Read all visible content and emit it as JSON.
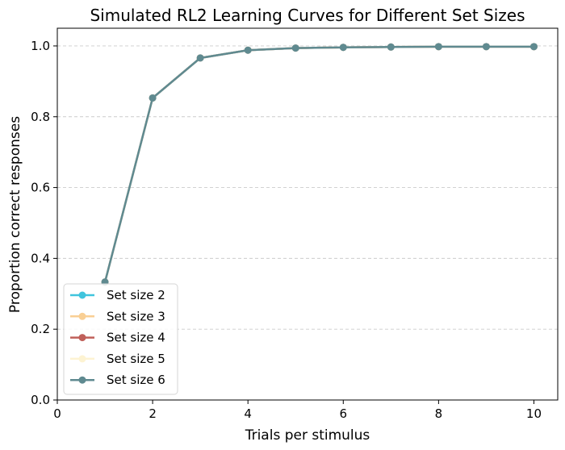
{
  "chart_data": {
    "type": "line",
    "title": "Simulated RL2 Learning Curves for Different Set Sizes",
    "xlabel": "Trials per stimulus",
    "ylabel": "Proportion correct responses",
    "xlim": [
      0,
      10.5
    ],
    "ylim": [
      0,
      1.05
    ],
    "xticks": [
      0,
      2,
      4,
      6,
      8,
      10
    ],
    "yticks": [
      0.0,
      0.2,
      0.4,
      0.6,
      0.8,
      1.0
    ],
    "ytick_labels": [
      "0.0",
      "0.2",
      "0.4",
      "0.6",
      "0.8",
      "1.0"
    ],
    "grid": "y-dashed",
    "legend_position": "lower-left",
    "x": [
      1,
      2,
      3,
      4,
      5,
      6,
      7,
      8,
      9,
      10
    ],
    "series": [
      {
        "name": "Set size 2",
        "color": "#40c4dd",
        "values": [
          0.333,
          0.853,
          0.966,
          0.988,
          0.994,
          0.996,
          0.997,
          0.998,
          0.998,
          0.998
        ]
      },
      {
        "name": "Set size 3",
        "color": "#f9cf94",
        "values": [
          0.333,
          0.853,
          0.966,
          0.988,
          0.994,
          0.996,
          0.997,
          0.998,
          0.998,
          0.998
        ]
      },
      {
        "name": "Set size 4",
        "color": "#c0605a",
        "values": [
          0.333,
          0.853,
          0.966,
          0.988,
          0.994,
          0.996,
          0.997,
          0.998,
          0.998,
          0.998
        ]
      },
      {
        "name": "Set size 5",
        "color": "#fdf3d2",
        "values": [
          0.333,
          0.853,
          0.966,
          0.988,
          0.994,
          0.996,
          0.997,
          0.998,
          0.998,
          0.998
        ]
      },
      {
        "name": "Set size 6",
        "color": "#5f8a90",
        "values": [
          0.333,
          0.853,
          0.966,
          0.988,
          0.994,
          0.996,
          0.997,
          0.998,
          0.998,
          0.998
        ]
      }
    ]
  }
}
